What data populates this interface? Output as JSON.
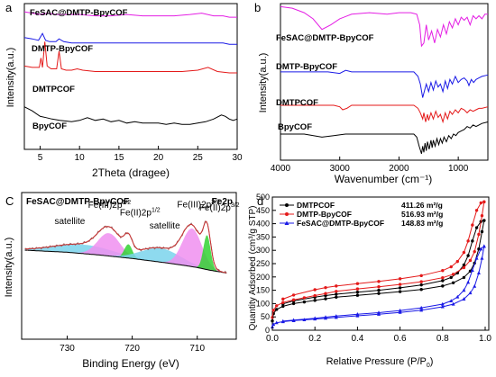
{
  "chart_data": [
    {
      "panel": "a",
      "type": "line",
      "xlabel": "2Theta (dragee)",
      "ylabel": "Intensity(a.u.)",
      "xlim": [
        3,
        30
      ],
      "xticks": [
        5,
        10,
        15,
        20,
        25,
        30
      ],
      "series": [
        {
          "name": "FeSAC@DMTP-BpyCOF",
          "color": "#e41ee4",
          "x": [
            3,
            4,
            5,
            6,
            7,
            8,
            10,
            12,
            14,
            16,
            18,
            20,
            22,
            24,
            25.5,
            27,
            28.2,
            29,
            30
          ],
          "y": [
            1.0,
            0.99,
            0.98,
            0.99,
            0.98,
            0.98,
            0.98,
            0.97,
            0.97,
            0.98,
            0.97,
            0.97,
            0.97,
            0.98,
            0.99,
            0.97,
            0.97,
            0.96,
            0.96
          ]
        },
        {
          "name": "DMTP-BpyCOF",
          "color": "#1a1ae6",
          "x": [
            3,
            4,
            4.8,
            5.3,
            5.7,
            6.2,
            7,
            7.4,
            8,
            9,
            10,
            12,
            14,
            17,
            20,
            23,
            25,
            27,
            28.2,
            29,
            30
          ],
          "y": [
            0.81,
            0.8,
            0.79,
            0.84,
            0.79,
            0.78,
            0.78,
            0.8,
            0.78,
            0.77,
            0.77,
            0.77,
            0.77,
            0.77,
            0.77,
            0.77,
            0.77,
            0.77,
            0.77,
            0.76,
            0.76
          ]
        },
        {
          "name": "DMTPCOF",
          "color": "#e41a1a",
          "x": [
            3,
            4,
            4.9,
            5.1,
            5.3,
            5.6,
            5.9,
            6.4,
            7.1,
            7.4,
            7.7,
            8.3,
            9,
            9.7,
            10.4,
            12,
            14,
            16,
            18,
            20,
            23,
            25,
            26.3,
            27.5,
            29,
            30
          ],
          "y": [
            0.6,
            0.59,
            0.59,
            0.66,
            0.59,
            0.78,
            0.6,
            0.58,
            0.58,
            0.71,
            0.58,
            0.57,
            0.57,
            0.58,
            0.57,
            0.56,
            0.56,
            0.56,
            0.56,
            0.56,
            0.56,
            0.57,
            0.59,
            0.56,
            0.55,
            0.55
          ]
        },
        {
          "name": "BpyCOF",
          "color": "#000000",
          "x": [
            3,
            4,
            5,
            5.8,
            6.5,
            7.5,
            9,
            10,
            11,
            12,
            13,
            14,
            15,
            16,
            17,
            18,
            19,
            20,
            21,
            22,
            23,
            24,
            25,
            26,
            27,
            28,
            28.5,
            29,
            29.5,
            30
          ],
          "y": [
            0.3,
            0.27,
            0.23,
            0.22,
            0.21,
            0.2,
            0.19,
            0.2,
            0.22,
            0.2,
            0.21,
            0.19,
            0.2,
            0.18,
            0.19,
            0.18,
            0.18,
            0.18,
            0.17,
            0.18,
            0.17,
            0.17,
            0.18,
            0.19,
            0.21,
            0.24,
            0.23,
            0.21,
            0.2,
            0.21
          ]
        }
      ]
    },
    {
      "panel": "b",
      "type": "line",
      "xlabel": "Wavenumber (cm⁻¹)",
      "ylabel": "Intensity(a.u.)",
      "xlim": [
        4000,
        500
      ],
      "xticks": [
        4000,
        3000,
        2000,
        1000
      ],
      "series": [
        {
          "name": "FeSAC@DMTP-BpyCOF",
          "color": "#e41ee4",
          "x": [
            4000,
            3800,
            3600,
            3450,
            3300,
            3150,
            3000,
            2800,
            2500,
            2200,
            2000,
            1800,
            1700,
            1650,
            1620,
            1580,
            1540,
            1500,
            1450,
            1400,
            1350,
            1300,
            1250,
            1200,
            1150,
            1100,
            1050,
            1000,
            950,
            900,
            850,
            800,
            750,
            700,
            650,
            600,
            550,
            500
          ],
          "y": [
            0.98,
            0.97,
            0.94,
            0.9,
            0.83,
            0.86,
            0.9,
            0.93,
            0.94,
            0.93,
            0.94,
            0.94,
            0.93,
            0.86,
            0.72,
            0.74,
            0.86,
            0.76,
            0.82,
            0.74,
            0.83,
            0.78,
            0.86,
            0.8,
            0.88,
            0.84,
            0.9,
            0.86,
            0.91,
            0.89,
            0.91,
            0.86,
            0.92,
            0.9,
            0.92,
            0.9,
            0.93,
            0.93
          ]
        },
        {
          "name": "DMTP-BpyCOF",
          "color": "#1a1ae6",
          "x": [
            4000,
            3600,
            3200,
            3000,
            2900,
            2800,
            2500,
            2200,
            1900,
            1750,
            1680,
            1640,
            1600,
            1580,
            1540,
            1500,
            1460,
            1420,
            1380,
            1340,
            1300,
            1260,
            1220,
            1180,
            1140,
            1100,
            1050,
            1000,
            950,
            900,
            850,
            820,
            780,
            740,
            700,
            650,
            600,
            500
          ],
          "y": [
            0.55,
            0.55,
            0.55,
            0.54,
            0.56,
            0.55,
            0.55,
            0.55,
            0.55,
            0.55,
            0.52,
            0.47,
            0.38,
            0.41,
            0.47,
            0.42,
            0.48,
            0.43,
            0.49,
            0.45,
            0.47,
            0.42,
            0.49,
            0.44,
            0.5,
            0.47,
            0.52,
            0.48,
            0.5,
            0.51,
            0.49,
            0.46,
            0.5,
            0.48,
            0.5,
            0.51,
            0.52,
            0.53
          ]
        },
        {
          "name": "DMTPCOF",
          "color": "#e41a1a",
          "x": [
            4000,
            3600,
            3300,
            3100,
            3000,
            2950,
            2880,
            2800,
            2500,
            2200,
            1900,
            1750,
            1680,
            1640,
            1600,
            1580,
            1550,
            1520,
            1500,
            1460,
            1420,
            1380,
            1340,
            1300,
            1260,
            1220,
            1180,
            1140,
            1100,
            1050,
            1000,
            950,
            900,
            850,
            800,
            750,
            700,
            650,
            600,
            500
          ],
          "y": [
            0.33,
            0.33,
            0.33,
            0.33,
            0.32,
            0.3,
            0.31,
            0.33,
            0.33,
            0.33,
            0.33,
            0.33,
            0.31,
            0.28,
            0.24,
            0.28,
            0.22,
            0.27,
            0.23,
            0.28,
            0.24,
            0.29,
            0.25,
            0.27,
            0.22,
            0.28,
            0.24,
            0.29,
            0.27,
            0.3,
            0.28,
            0.31,
            0.3,
            0.28,
            0.3,
            0.29,
            0.3,
            0.31,
            0.31,
            0.32
          ]
        },
        {
          "name": "BpyCOF",
          "color": "#000000",
          "x": [
            4000,
            3600,
            3300,
            3100,
            2900,
            2700,
            2500,
            2200,
            1900,
            1750,
            1700,
            1660,
            1620,
            1600,
            1580,
            1560,
            1540,
            1520,
            1490,
            1460,
            1440,
            1420,
            1390,
            1360,
            1330,
            1300,
            1270,
            1240,
            1200,
            1160,
            1120,
            1080,
            1040,
            1000,
            950,
            900,
            850,
            800,
            750,
            700,
            650,
            600,
            500
          ],
          "y": [
            0.14,
            0.14,
            0.12,
            0.13,
            0.14,
            0.14,
            0.14,
            0.14,
            0.14,
            0.14,
            0.12,
            0.06,
            0.01,
            0.06,
            0.02,
            0.08,
            0.03,
            0.09,
            0.04,
            0.1,
            0.05,
            0.1,
            0.06,
            0.11,
            0.07,
            0.11,
            0.08,
            0.12,
            0.09,
            0.13,
            0.11,
            0.14,
            0.13,
            0.15,
            0.16,
            0.17,
            0.19,
            0.18,
            0.2,
            0.19,
            0.2,
            0.21,
            0.22
          ]
        }
      ]
    },
    {
      "panel": "c",
      "type": "area",
      "title": "FeSAC@DMTP-BpyCOF",
      "corner_label": "Fe2p",
      "xlabel": "Binding Energy (eV)",
      "ylabel": "Intensity(a.u.)",
      "xlim": [
        737,
        704
      ],
      "xticks": [
        730,
        720,
        710
      ],
      "annotations": [
        {
          "text": "satellite",
          "x": 729.6,
          "y": 0.73
        },
        {
          "text": "Fe(III)2p",
          "sup": "1/2",
          "x": 723.5,
          "y": 0.96
        },
        {
          "text": "Fe(II)2p",
          "sup": "1/2",
          "x": 718.8,
          "y": 0.85
        },
        {
          "text": "satellite",
          "x": 715.0,
          "y": 0.66
        },
        {
          "text": "Fe(III)2p",
          "sup": "3/2",
          "x": 709.8,
          "y": 0.97
        },
        {
          "text": "Fe(II)2p",
          "sup": "3/2",
          "x": 706.6,
          "y": 0.92
        }
      ],
      "background": {
        "x": [
          736.5,
          730,
          725,
          720,
          715,
          712,
          710,
          708,
          705.5
        ],
        "y": [
          0.35,
          0.32,
          0.28,
          0.23,
          0.17,
          0.13,
          0.1,
          0.06,
          0.02
        ]
      },
      "peaks": [
        {
          "role": "satellite",
          "center": 727.5,
          "width": 4.5,
          "height": 0.13,
          "color": "#7ad3ec"
        },
        {
          "role": "Fe(III)2p1/2",
          "center": 723.6,
          "width": 1.7,
          "height": 0.33,
          "color": "#f08ff0"
        },
        {
          "role": "Fe(II)2p1/2",
          "center": 720.6,
          "width": 0.6,
          "height": 0.2,
          "color": "#32d232"
        },
        {
          "role": "satellite",
          "center": 715.6,
          "width": 3.0,
          "height": 0.2,
          "color": "#7ad3ec"
        },
        {
          "role": "Fe(III)2p3/2",
          "center": 710.8,
          "width": 1.5,
          "height": 0.55,
          "color": "#f08ff0"
        },
        {
          "role": "Fe(II)2p3/2",
          "center": 708.5,
          "width": 0.55,
          "height": 0.5,
          "color": "#32d232"
        }
      ]
    },
    {
      "panel": "d",
      "type": "line",
      "xlabel": "Relative Pressure (P/P",
      "xlabel_sub": "0",
      "xlabel_end": ")",
      "ylabel": "Quantity Adsorbed (cm³/g STP)",
      "xlim": [
        0.0,
        1.0
      ],
      "ylim": [
        0,
        500
      ],
      "xticks": [
        0.0,
        0.2,
        0.4,
        0.6,
        0.8,
        1.0
      ],
      "yticks": [
        0,
        50,
        100,
        150,
        200,
        250,
        300,
        350,
        400,
        450,
        500
      ],
      "legend": "top-left",
      "series": [
        {
          "name": "DMTPCOF",
          "value_label": "411.26 m²/g",
          "color": "#000000",
          "marker": "circle",
          "adsorption": {
            "x": [
              0.0,
              0.005,
              0.02,
              0.05,
              0.1,
              0.15,
              0.2,
              0.25,
              0.3,
              0.4,
              0.5,
              0.6,
              0.7,
              0.8,
              0.85,
              0.9,
              0.93,
              0.95,
              0.97,
              0.985,
              0.995
            ],
            "y": [
              35,
              62,
              78,
              90,
              100,
              106,
              112,
              118,
              124,
              131,
              138,
              145,
              153,
              166,
              178,
              198,
              222,
              252,
              305,
              370,
              412
            ]
          },
          "desorption": {
            "x": [
              0.995,
              0.98,
              0.96,
              0.94,
              0.92,
              0.9,
              0.87,
              0.84,
              0.8,
              0.7,
              0.6,
              0.5,
              0.4,
              0.3,
              0.25,
              0.2,
              0.1,
              0.05
            ],
            "y": [
              412,
              408,
              385,
              335,
              280,
              245,
              215,
              198,
              186,
              170,
              159,
              150,
              143,
              135,
              130,
              124,
              110,
              99
            ]
          }
        },
        {
          "name": "DMTP-BpyCOF",
          "value_label": "516.93 m²/g",
          "color": "#e41a1a",
          "marker": "circle",
          "adsorption": {
            "x": [
              0.0,
              0.005,
              0.02,
              0.05,
              0.1,
              0.15,
              0.2,
              0.25,
              0.3,
              0.4,
              0.5,
              0.6,
              0.7,
              0.8,
              0.85,
              0.9,
              0.93,
              0.95,
              0.97,
              0.985,
              0.995
            ],
            "y": [
              48,
              75,
              92,
              104,
              114,
              122,
              130,
              138,
              146,
              155,
              163,
              172,
              182,
              197,
              210,
              235,
              262,
              295,
              360,
              430,
              482
            ]
          },
          "desorption": {
            "x": [
              0.995,
              0.98,
              0.96,
              0.94,
              0.92,
              0.9,
              0.87,
              0.84,
              0.8,
              0.7,
              0.6,
              0.5,
              0.4,
              0.3,
              0.25,
              0.2,
              0.1,
              0.05
            ],
            "y": [
              482,
              478,
              450,
              395,
              335,
              292,
              258,
              238,
              224,
              205,
              193,
              183,
              175,
              166,
              160,
              152,
              132,
              117
            ]
          }
        },
        {
          "name": "FeSAC@DMTP-BpyCOF",
          "value_label": "148.83 m²/g",
          "color": "#1a1ae6",
          "marker": "triangle",
          "adsorption": {
            "x": [
              0.0,
              0.005,
              0.02,
              0.05,
              0.1,
              0.15,
              0.2,
              0.25,
              0.3,
              0.4,
              0.5,
              0.6,
              0.7,
              0.8,
              0.85,
              0.9,
              0.93,
              0.95,
              0.97,
              0.985,
              0.995
            ],
            "y": [
              12,
              22,
              28,
              32,
              36,
              39,
              42,
              45,
              48,
              54,
              60,
              67,
              75,
              88,
              98,
              117,
              140,
              165,
              215,
              270,
              315
            ]
          },
          "desorption": {
            "x": [
              0.995,
              0.98,
              0.96,
              0.94,
              0.92,
              0.9,
              0.87,
              0.84,
              0.8,
              0.7,
              0.6,
              0.5,
              0.4,
              0.3,
              0.25,
              0.2,
              0.1,
              0.05
            ],
            "y": [
              315,
              305,
              270,
              225,
              180,
              150,
              125,
              110,
              98,
              84,
              74,
              66,
              60,
              53,
              49,
              45,
              38,
              34
            ]
          }
        }
      ]
    }
  ],
  "panel_letters": [
    "a",
    "b",
    "C",
    "d"
  ],
  "ticks_c_display": [
    "730",
    "720",
    "710"
  ]
}
